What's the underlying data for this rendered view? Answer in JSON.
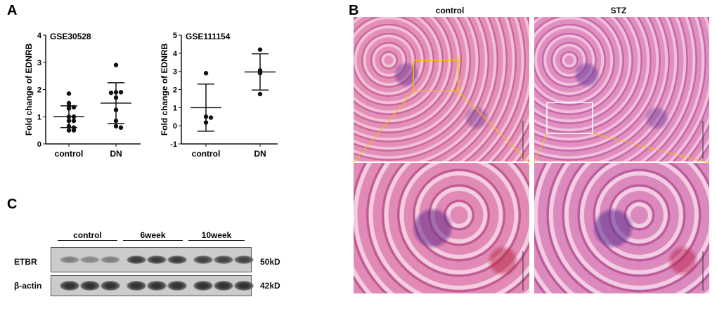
{
  "panels": {
    "a": "A",
    "b": "B",
    "c": "C"
  },
  "chart_data": [
    {
      "type": "scatter",
      "title": "GSE30528",
      "ylabel": "Fold change of EDNRB",
      "xlabel": "",
      "categories": [
        "control",
        "DN"
      ],
      "ylim": [
        0,
        4
      ],
      "yticks": [
        0,
        1,
        2,
        3,
        4
      ],
      "series": [
        {
          "category": "control",
          "values": [
            1.85,
            1.5,
            1.4,
            1.35,
            1.3,
            1.0,
            1.0,
            0.85,
            0.85,
            0.65,
            0.6,
            0.5,
            0.5
          ],
          "mean": 1.0,
          "sd": 0.4
        },
        {
          "category": "DN",
          "values": [
            2.9,
            1.9,
            1.9,
            1.88,
            1.7,
            1.25,
            0.85,
            0.65,
            0.6
          ],
          "mean": 1.5,
          "sd": 0.75
        }
      ]
    },
    {
      "type": "scatter",
      "title": "GSE111154",
      "ylabel": "Fold change of EDNRB",
      "xlabel": "",
      "categories": [
        "control",
        "DN"
      ],
      "ylim": [
        -1,
        5
      ],
      "yticks": [
        -1,
        0,
        1,
        2,
        3,
        4,
        5
      ],
      "series": [
        {
          "category": "control",
          "values": [
            2.9,
            0.5,
            0.45,
            0.18
          ],
          "mean": 1.0,
          "sd": 1.3
        },
        {
          "category": "DN",
          "values": [
            4.2,
            3.05,
            2.9,
            1.75
          ],
          "mean": 2.97,
          "sd": 1.0
        }
      ]
    }
  ],
  "histology": {
    "col_labels": [
      "control",
      "STZ"
    ],
    "box_color": "#f2c200"
  },
  "blot": {
    "groups": [
      "control",
      "6week",
      "10week"
    ],
    "rows": [
      {
        "name": "ETBR",
        "size": "50kD",
        "intensity": [
          0.45,
          0.4,
          0.45,
          0.85,
          0.85,
          0.85,
          0.8,
          0.8,
          0.8
        ]
      },
      {
        "name": "β-actin",
        "size": "42kD",
        "intensity": [
          0.9,
          0.9,
          0.9,
          0.9,
          0.9,
          0.9,
          0.9,
          0.9,
          0.9
        ]
      }
    ]
  }
}
